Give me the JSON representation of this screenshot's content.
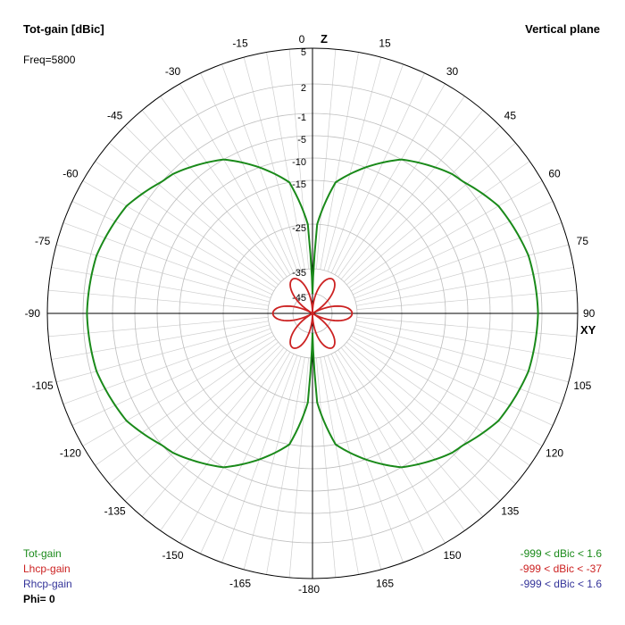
{
  "header": {
    "title": "Tot-gain [dBic]",
    "plane": "Vertical plane",
    "freq": "Freq=5800"
  },
  "legend": {
    "items": [
      {
        "label": "Tot-gain",
        "range": "-999 < dBic < 1.6",
        "color": "#1a8a1a"
      },
      {
        "label": "Lhcp-gain",
        "range": "-999 < dBic < -37",
        "color": "#cc2222"
      },
      {
        "label": "Rhcp-gain",
        "range": "-999 < dBic < 1.6",
        "color": "#333399"
      }
    ],
    "phi": "Phi= 0"
  },
  "chart_data": {
    "type": "polar",
    "title": "Tot-gain [dBic]",
    "axis_labels": {
      "z": "Z",
      "xy": "XY"
    },
    "angle_labels": [
      "0",
      "15",
      "30",
      "45",
      "60",
      "75",
      "90",
      "105",
      "120",
      "135",
      "150",
      "165",
      "-180",
      "-165",
      "-150",
      "-135",
      "-120",
      "-105",
      "-90",
      "-75",
      "-60",
      "-45",
      "-30",
      "-15"
    ],
    "radial_labels": [
      "5",
      "2",
      "-1",
      "-5",
      "-10",
      "-15",
      "-25",
      "-35",
      "-45"
    ],
    "radial_values": [
      5,
      2,
      -1,
      -5,
      -10,
      -15,
      -25,
      -35,
      -45
    ],
    "series": [
      {
        "name": "Tot-gain",
        "color": "#1a8a1a",
        "angles_deg": [
          0,
          3,
          10,
          20,
          30,
          45,
          60,
          75,
          90,
          105,
          120,
          135,
          150,
          160,
          170,
          177,
          180
        ],
        "gain_dbic": [
          -45,
          -25,
          -15,
          -10,
          -5,
          -1.5,
          0.5,
          1.4,
          1.6,
          1.4,
          0.5,
          -1.5,
          -5,
          -10,
          -15,
          -25,
          -45
        ]
      },
      {
        "name": "Lhcp-gain",
        "color": "#cc2222",
        "petals": 6,
        "max_dbic": -37
      }
    ],
    "range": [
      -45,
      5
    ]
  }
}
